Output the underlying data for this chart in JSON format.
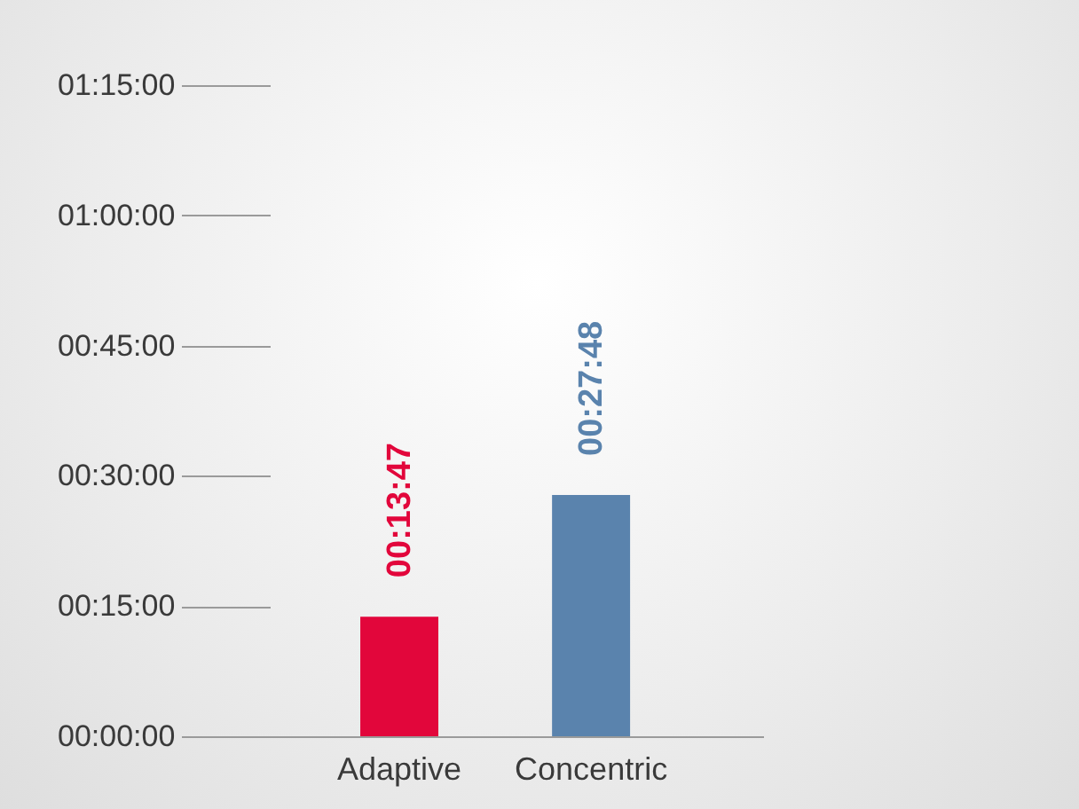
{
  "chart_data": {
    "type": "bar",
    "categories": [
      "Adaptive",
      "Concentric"
    ],
    "values": [
      13.78,
      27.8
    ],
    "colors": [
      "#e2063b",
      "#5a83ad"
    ],
    "value_labels": [
      "00:13:47",
      "00:27:48"
    ],
    "ylim": [
      0,
      75
    ],
    "yticks": [
      {
        "value": 0,
        "label": "00:00:00"
      },
      {
        "value": 15,
        "label": "00:15:00"
      },
      {
        "value": 30,
        "label": "00:30:00"
      },
      {
        "value": 45,
        "label": "00:45:00"
      },
      {
        "value": 60,
        "label": "01:00:00"
      },
      {
        "value": 75,
        "label": "01:15:00"
      }
    ],
    "grid": false
  }
}
